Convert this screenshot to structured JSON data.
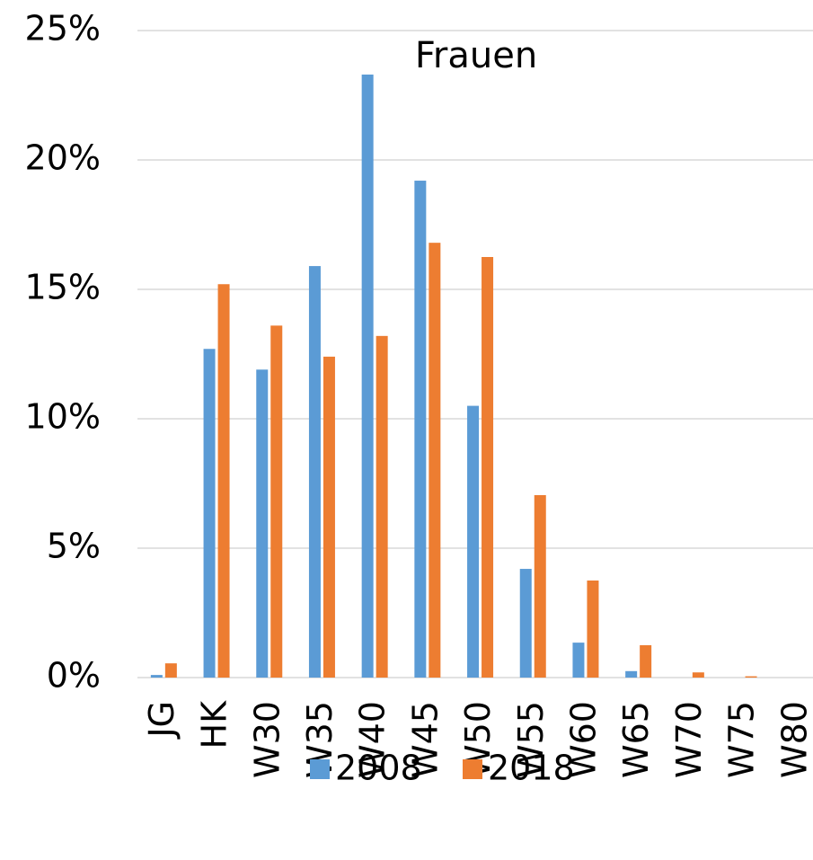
{
  "chart_data": {
    "type": "bar",
    "title": "Frauen",
    "categories": [
      "JG",
      "HK",
      "W30",
      "W35",
      "W40",
      "W45",
      "W50",
      "W55",
      "W60",
      "W65",
      "W70",
      "W75",
      "W80"
    ],
    "series": [
      {
        "name": "2008",
        "color": "#5b9bd5",
        "values": [
          0.1,
          12.7,
          11.9,
          15.9,
          23.3,
          19.2,
          10.5,
          4.2,
          1.35,
          0.25,
          0,
          0,
          0
        ]
      },
      {
        "name": "2018",
        "color": "#ed7d31",
        "values": [
          0.55,
          15.2,
          13.6,
          12.4,
          13.2,
          16.8,
          16.25,
          7.05,
          3.75,
          1.25,
          0.2,
          0.05,
          0
        ]
      }
    ],
    "ylim": [
      0,
      25
    ],
    "yticks": [
      {
        "value": 0,
        "label": "0%"
      },
      {
        "value": 5,
        "label": "5%"
      },
      {
        "value": 10,
        "label": "10%"
      },
      {
        "value": 15,
        "label": "15%"
      },
      {
        "value": 20,
        "label": "20%"
      },
      {
        "value": 25,
        "label": "25%"
      }
    ],
    "grid": true,
    "legend": "bottom"
  }
}
